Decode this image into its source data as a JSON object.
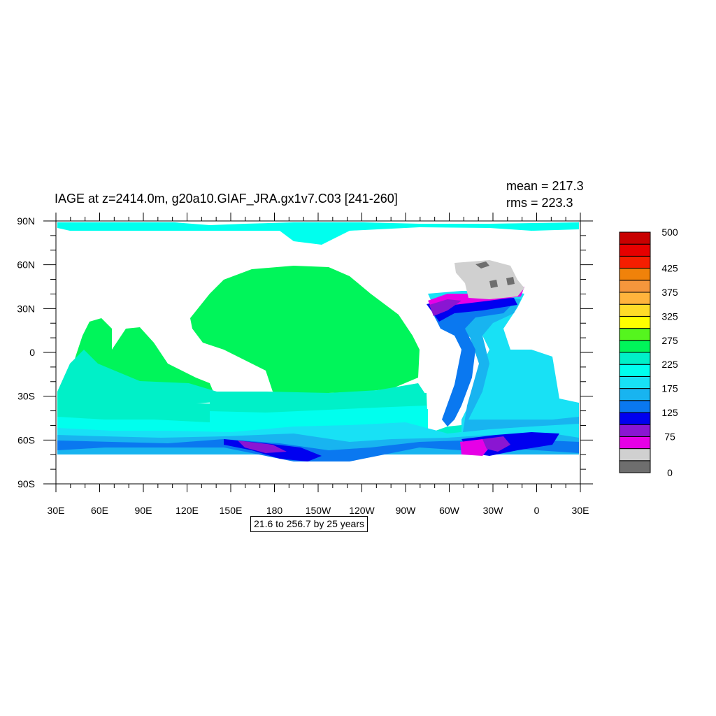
{
  "figure": {
    "title": "IAGE at z=2414.0m, g20a10.GIAF_JRA.gx1v7.C03 [241-260]",
    "stats": {
      "mean": "mean = 217.3",
      "rms": "rms = 223.3"
    },
    "range_note": "21.6 to 256.7 by 25 years"
  },
  "map": {
    "projection": "cylindrical equidistant",
    "lon_range": [
      "30E",
      "30E"
    ],
    "lat_range": [
      "90S",
      "90N"
    ],
    "lon_ticks": [
      "30E",
      "60E",
      "90E",
      "120E",
      "150E",
      "180",
      "150W",
      "120W",
      "90W",
      "60W",
      "30W",
      "0",
      "30E"
    ],
    "lat_ticks": [
      "90N",
      "60N",
      "30N",
      "0",
      "30S",
      "60S",
      "90S"
    ],
    "land_color": "#ffffff"
  },
  "colorbar": {
    "colors": [
      "#6e6e6e",
      "#d0d0d0",
      "#e600e6",
      "#8a16d2",
      "#0000f0",
      "#0a78f0",
      "#18b4f0",
      "#18e1f5",
      "#00ffee",
      "#00f0c8",
      "#00f55a",
      "#55f51e",
      "#ffff00",
      "#ffdc28",
      "#ffb43c",
      "#f5963c",
      "#f0820a",
      "#f51e00",
      "#e60000",
      "#c80000"
    ],
    "labels": [
      "0",
      "75",
      "125",
      "175",
      "225",
      "275",
      "325",
      "375",
      "425",
      "500"
    ]
  }
}
